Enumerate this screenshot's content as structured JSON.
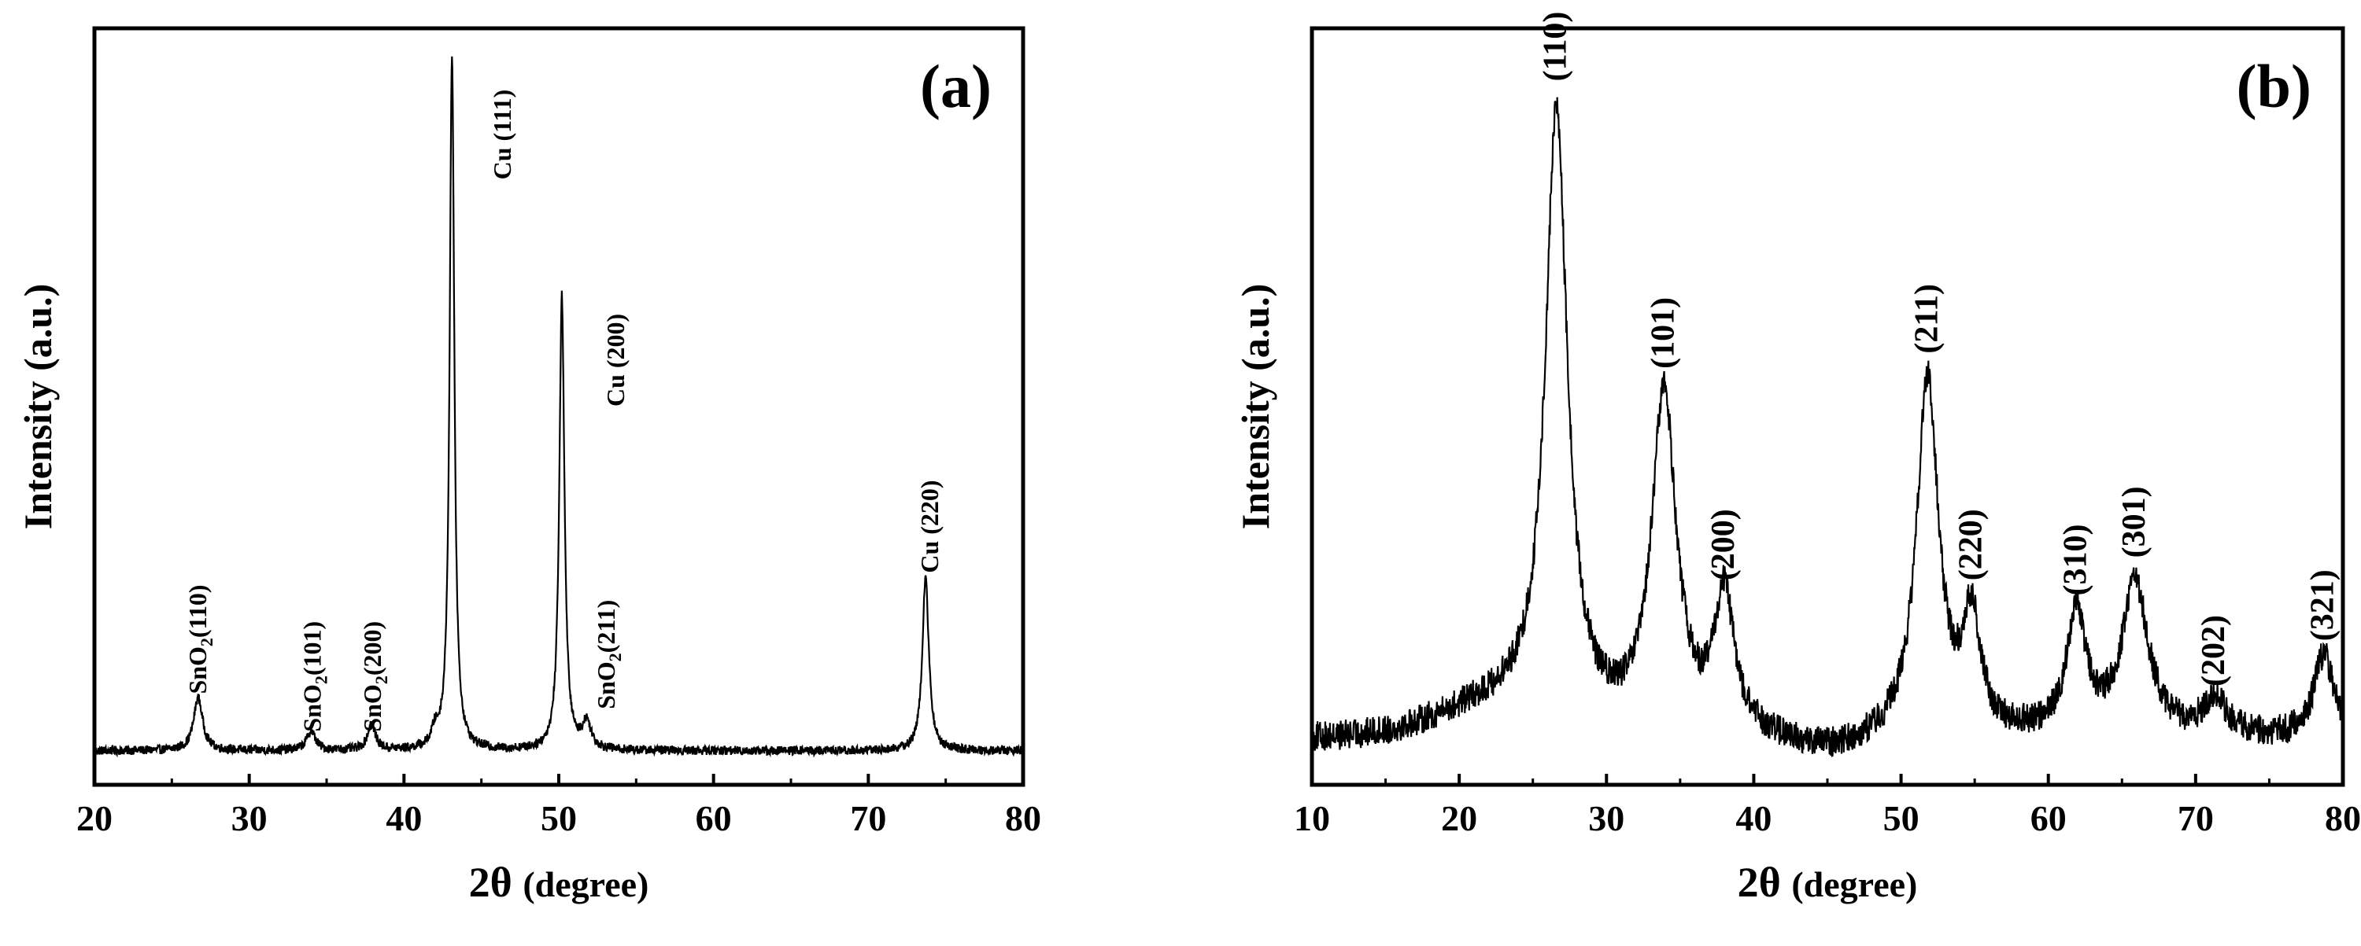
{
  "chart_data": [
    {
      "type": "line",
      "panel_label": "(a)",
      "xlabel": "2θ (degree)",
      "xlabel_main": "2θ",
      "xlabel_unit": "(degree)",
      "ylabel": "Intensity (a.u.)",
      "xlim": [
        20,
        80
      ],
      "ylim": [
        0,
        100
      ],
      "xticks": [
        20,
        30,
        40,
        50,
        60,
        70,
        80
      ],
      "baseline": 4.5,
      "noise": 0.6,
      "peaks": [
        {
          "x": 26.7,
          "height": 7,
          "width": 0.35
        },
        {
          "x": 34.0,
          "height": 2.5,
          "width": 0.35
        },
        {
          "x": 37.9,
          "height": 3.5,
          "width": 0.3
        },
        {
          "x": 42.0,
          "height": 2.0,
          "width": 0.25
        },
        {
          "x": 43.1,
          "height": 92,
          "width": 0.18
        },
        {
          "x": 50.2,
          "height": 60,
          "width": 0.2
        },
        {
          "x": 51.8,
          "height": 3.5,
          "width": 0.35
        },
        {
          "x": 73.7,
          "height": 23,
          "width": 0.25
        }
      ],
      "annotations": [
        {
          "text": "SnO2(110)",
          "main": "SnO",
          "sub": "2",
          "rest": "(110)",
          "x": 26.6,
          "y": 12
        },
        {
          "text": "SnO2(101)",
          "main": "SnO",
          "sub": "2",
          "rest": "(101)",
          "x": 34.0,
          "y": 7
        },
        {
          "text": "SnO2(200)",
          "main": "SnO",
          "sub": "2",
          "rest": "(200)",
          "x": 37.9,
          "y": 7
        },
        {
          "text": "Cu (111)",
          "main": "Cu (111)",
          "sub": "",
          "rest": "",
          "x": 46.3,
          "y": 80
        },
        {
          "text": "Cu (200)",
          "main": "Cu (200)",
          "sub": "",
          "rest": "",
          "x": 53.6,
          "y": 50
        },
        {
          "text": "SnO2(211)",
          "main": "SnO",
          "sub": "2",
          "rest": "(211)",
          "x": 53.0,
          "y": 10
        },
        {
          "text": "Cu (220)",
          "main": "Cu (220)",
          "sub": "",
          "rest": "",
          "x": 73.9,
          "y": 28
        }
      ]
    },
    {
      "type": "line",
      "panel_label": "(b)",
      "xlabel": "2θ (degree)",
      "xlabel_main": "2θ",
      "xlabel_unit": "(degree)",
      "ylabel": "Intensity (a.u.)",
      "xlim": [
        10,
        80
      ],
      "ylim": [
        0,
        100
      ],
      "xticks": [
        10,
        20,
        30,
        40,
        50,
        60,
        70,
        80
      ],
      "baseline": 6,
      "noise": 2.0,
      "peaks": [
        {
          "x": 26.6,
          "height": 80,
          "width": 0.9
        },
        {
          "x": 33.9,
          "height": 45,
          "width": 1.0
        },
        {
          "x": 38.0,
          "height": 18,
          "width": 0.8
        },
        {
          "x": 51.8,
          "height": 47,
          "width": 0.9
        },
        {
          "x": 54.8,
          "height": 15,
          "width": 0.7
        },
        {
          "x": 61.9,
          "height": 16,
          "width": 0.8
        },
        {
          "x": 65.9,
          "height": 20,
          "width": 1.1
        },
        {
          "x": 71.3,
          "height": 5,
          "width": 0.9
        },
        {
          "x": 78.7,
          "height": 11,
          "width": 0.8
        }
      ],
      "annotations": [
        {
          "text": "(110)",
          "x": 26.6,
          "y": 93
        },
        {
          "text": "(101)",
          "x": 33.9,
          "y": 55
        },
        {
          "text": "(200)",
          "x": 38.0,
          "y": 27
        },
        {
          "text": "(211)",
          "x": 51.8,
          "y": 57
        },
        {
          "text": "(220)",
          "x": 54.8,
          "y": 27
        },
        {
          "text": "(310)",
          "x": 61.9,
          "y": 25
        },
        {
          "text": "(301)",
          "x": 65.9,
          "y": 30
        },
        {
          "text": "(202)",
          "x": 71.3,
          "y": 13
        },
        {
          "text": "(321)",
          "x": 78.7,
          "y": 19
        }
      ]
    }
  ]
}
